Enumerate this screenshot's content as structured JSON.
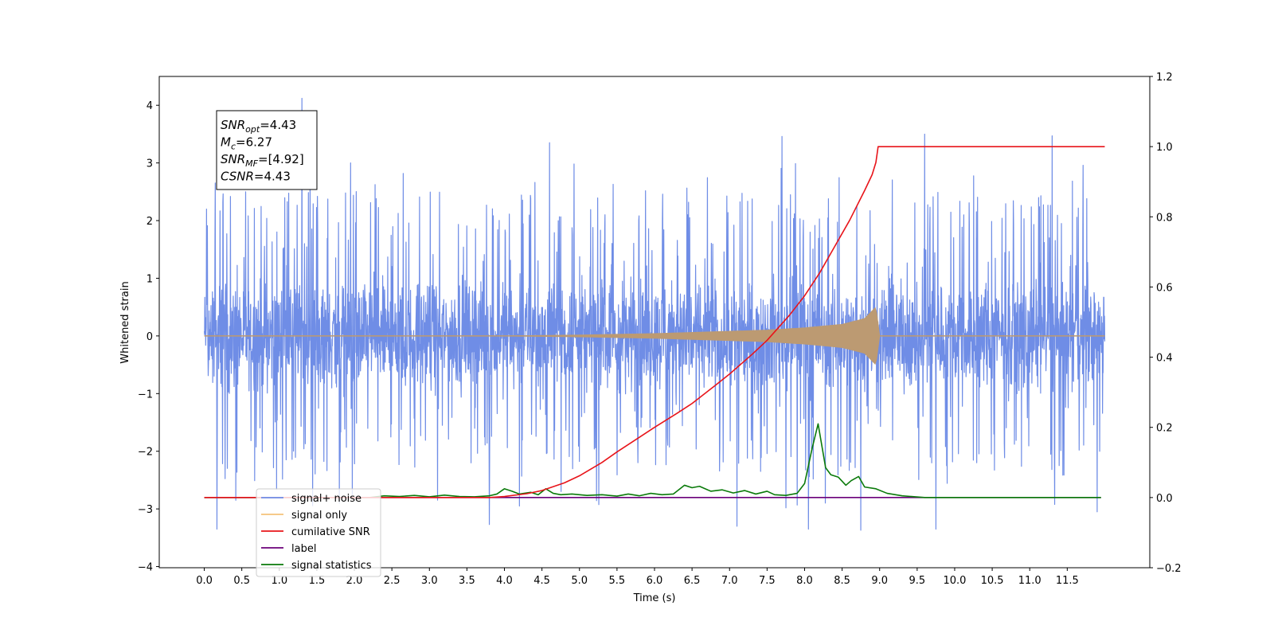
{
  "chart_data": {
    "type": "line",
    "xlabel": "Time (s)",
    "ylabel": "Whitened strain",
    "xlim": [
      -0.6,
      12.6
    ],
    "ylim": [
      -4.02,
      4.5
    ],
    "y2lim": [
      -0.2,
      1.2
    ],
    "x_ticks": [
      0.0,
      0.5,
      1.0,
      1.5,
      2.0,
      2.5,
      3.0,
      3.5,
      4.0,
      4.5,
      5.0,
      5.5,
      6.0,
      6.5,
      7.0,
      7.5,
      8.0,
      8.5,
      9.0,
      9.5,
      10.0,
      10.5,
      11.0,
      11.5
    ],
    "x_tick_labels": [
      "0.0",
      "0.5",
      "1.0",
      "1.5",
      "2.0",
      "2.5",
      "3.0",
      "3.5",
      "4.0",
      "4.5",
      "5.0",
      "5.5",
      "6.0",
      "6.5",
      "7.0",
      "7.5",
      "8.0",
      "8.5",
      "9.0",
      "9.5",
      "10.0",
      "10.5",
      "11.0",
      "11.5"
    ],
    "y_ticks": [
      -4,
      -3,
      -2,
      -1,
      0,
      1,
      2,
      3,
      4
    ],
    "y_tick_labels": [
      "−4",
      "−3",
      "−2",
      "−1",
      "0",
      "1",
      "2",
      "3",
      "4"
    ],
    "y2_ticks": [
      -0.2,
      0.0,
      0.2,
      0.4,
      0.6,
      0.8,
      1.0,
      1.2
    ],
    "y2_tick_labels": [
      "−0.2",
      "0.0",
      "0.2",
      "0.4",
      "0.6",
      "0.8",
      "1.0",
      "1.2"
    ],
    "grid": false,
    "legend_position": "lower-left",
    "annotation": {
      "lines": [
        {
          "base": "SNR",
          "sub": "opt",
          "value": "=4.43"
        },
        {
          "base": "M",
          "sub": "c",
          "value": "=6.27"
        },
        {
          "base": "SNR",
          "sub": "MF",
          "value": "=[4.92]"
        },
        {
          "base": "CSNR",
          "sub": "",
          "value": "=4.43"
        }
      ]
    },
    "noise": {
      "name": "signal+ noise",
      "color": "#6f8de6",
      "axis": "left",
      "x_range": [
        0.0,
        12.0
      ],
      "band": [
        -1.3,
        1.3
      ],
      "spikes_high": [
        [
          0.03,
          2.2
        ],
        [
          0.55,
          2.5
        ],
        [
          1.3,
          4.12
        ],
        [
          1.95,
          3.0
        ],
        [
          4.6,
          3.35
        ],
        [
          7.7,
          3.46
        ],
        [
          9.6,
          3.5
        ],
        [
          11.3,
          3.47
        ],
        [
          11.9,
          2.45
        ]
      ],
      "spikes_low": [
        [
          0.17,
          -3.35
        ],
        [
          0.42,
          -2.85
        ],
        [
          1.8,
          -2.9
        ],
        [
          3.8,
          -3.27
        ],
        [
          7.1,
          -3.3
        ],
        [
          8.05,
          -3.35
        ],
        [
          8.75,
          -3.37
        ],
        [
          9.75,
          -3.35
        ],
        [
          11.9,
          -3.05
        ]
      ]
    },
    "signal": {
      "name": "signal only",
      "color": "#f5c27a",
      "overlap_color": "#bc9a72",
      "axis": "left",
      "x": [
        0.0,
        4.0,
        5.0,
        6.0,
        7.0,
        7.5,
        8.0,
        8.5,
        8.8,
        8.95,
        9.0,
        12.0
      ],
      "amplitude": [
        0.0,
        0.0,
        0.015,
        0.04,
        0.08,
        0.1,
        0.14,
        0.2,
        0.3,
        0.5,
        0.0,
        0.0
      ]
    },
    "series": [
      {
        "name": "cumilative SNR",
        "color": "#e8141a",
        "axis": "right",
        "x": [
          0.0,
          3.8,
          4.0,
          4.3,
          4.5,
          4.8,
          5.0,
          5.3,
          5.5,
          5.8,
          6.0,
          6.3,
          6.5,
          6.8,
          7.0,
          7.3,
          7.5,
          7.8,
          8.0,
          8.2,
          8.4,
          8.6,
          8.8,
          8.9,
          8.95,
          8.98,
          12.0
        ],
        "y": [
          0.0,
          0.0,
          0.003,
          0.011,
          0.02,
          0.042,
          0.062,
          0.1,
          0.13,
          0.172,
          0.2,
          0.24,
          0.268,
          0.318,
          0.352,
          0.408,
          0.448,
          0.52,
          0.575,
          0.64,
          0.715,
          0.79,
          0.875,
          0.92,
          0.955,
          1.0,
          1.0
        ]
      },
      {
        "name": "label",
        "color": "#6b007a",
        "axis": "right",
        "x": [
          0.0,
          11.95
        ],
        "y": [
          0.0,
          0.0
        ]
      },
      {
        "name": "signal statistics",
        "color": "#0a7a0a",
        "axis": "right",
        "x": [
          0.0,
          2.2,
          2.4,
          2.6,
          2.8,
          3.0,
          3.2,
          3.4,
          3.6,
          3.8,
          3.9,
          4.0,
          4.1,
          4.2,
          4.35,
          4.45,
          4.55,
          4.65,
          4.75,
          4.9,
          5.1,
          5.3,
          5.5,
          5.65,
          5.8,
          5.95,
          6.1,
          6.25,
          6.4,
          6.5,
          6.6,
          6.75,
          6.9,
          7.05,
          7.2,
          7.35,
          7.5,
          7.6,
          7.75,
          7.9,
          8.0,
          8.1,
          8.18,
          8.22,
          8.28,
          8.35,
          8.45,
          8.55,
          8.62,
          8.72,
          8.8,
          8.95,
          9.1,
          9.3,
          9.6,
          11.95
        ],
        "y": [
          0.0,
          0.0,
          0.005,
          0.003,
          0.006,
          0.002,
          0.007,
          0.003,
          0.002,
          0.005,
          0.01,
          0.025,
          0.018,
          0.01,
          0.015,
          0.008,
          0.025,
          0.012,
          0.008,
          0.01,
          0.006,
          0.008,
          0.004,
          0.01,
          0.005,
          0.012,
          0.008,
          0.01,
          0.035,
          0.028,
          0.032,
          0.018,
          0.022,
          0.013,
          0.02,
          0.01,
          0.018,
          0.008,
          0.006,
          0.012,
          0.04,
          0.14,
          0.21,
          0.16,
          0.085,
          0.065,
          0.058,
          0.035,
          0.048,
          0.06,
          0.03,
          0.025,
          0.012,
          0.005,
          0.0,
          0.0
        ]
      }
    ],
    "legend": [
      {
        "label": "signal+ noise",
        "color": "#6f8de6"
      },
      {
        "label": "signal only",
        "color": "#f5c27a"
      },
      {
        "label": "cumilative SNR",
        "color": "#e8141a"
      },
      {
        "label": "label",
        "color": "#6b007a"
      },
      {
        "label": "signal statistics",
        "color": "#0a7a0a"
      }
    ]
  }
}
